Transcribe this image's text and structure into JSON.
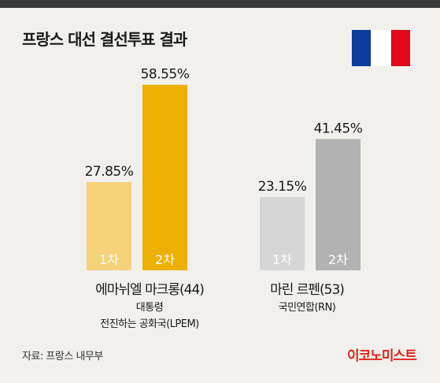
{
  "header": {
    "title": "프랑스 대선 결선투표 결과"
  },
  "flag": {
    "colors": [
      "#0b3c9c",
      "#ffffff",
      "#e10a1a"
    ]
  },
  "chart_data": {
    "type": "bar",
    "title": "프랑스 대선 결선투표 결과",
    "unit": "%",
    "groups": [
      {
        "name": "에마뉘엘 마크롱(44)",
        "subtitle_lines": [
          "대통령",
          "전진하는 공화국(LPEM)"
        ],
        "bars": [
          {
            "round": "1차",
            "value": 27.85,
            "label": "27.85%",
            "color": "#f5d27a"
          },
          {
            "round": "2차",
            "value": 58.55,
            "label": "58.55%",
            "color": "#edb000"
          }
        ]
      },
      {
        "name": "마린 르펜(53)",
        "subtitle_lines": [
          "국민연합(RN)"
        ],
        "bars": [
          {
            "round": "1차",
            "value": 23.15,
            "label": "23.15%",
            "color": "#d6d6d6"
          },
          {
            "round": "2차",
            "value": 41.45,
            "label": "41.45%",
            "color": "#b2b2b2"
          }
        ]
      }
    ]
  },
  "footer": {
    "source": "자료: 프랑스 내무부",
    "logo": "이코노미스트"
  }
}
